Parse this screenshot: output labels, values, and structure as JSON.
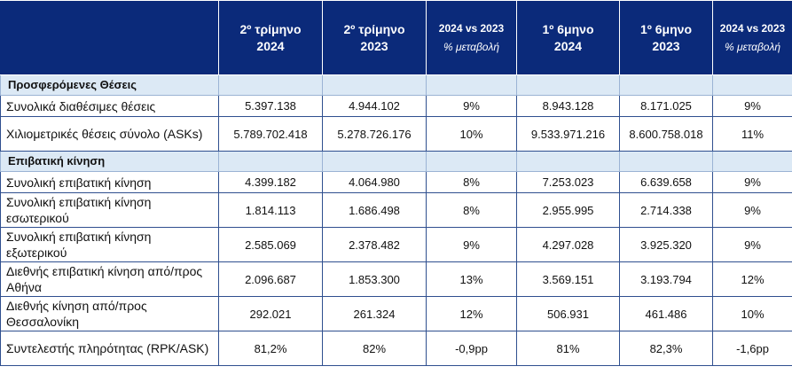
{
  "header": {
    "q2_2024": [
      "2º τρίμηνο",
      "2024"
    ],
    "q2_2023": [
      "2º τρίμηνο",
      "2023"
    ],
    "q_change": [
      "2024 vs 2023",
      "% μεταβολή"
    ],
    "h1_2024": [
      "1º  6μηνο",
      "2024"
    ],
    "h1_2023": [
      "1º  6μηνο",
      "2023"
    ],
    "h_change": [
      "2024 vs 2023",
      "% μεταβολή"
    ]
  },
  "sections": [
    {
      "title": "Προσφερόμενες Θέσεις",
      "rows": [
        {
          "label": "Συνολικά διαθέσιμες θέσεις",
          "values": [
            "5.397.138",
            "4.944.102",
            "9%",
            "8.943.128",
            "8.171.025",
            "9%"
          ]
        },
        {
          "label": "Χιλιομετρικές θέσεις σύνολο (ASKs)",
          "values": [
            "5.789.702.418",
            "5.278.726.176",
            "10%",
            "9.533.971.216",
            "8.600.758.018",
            "11%"
          ]
        }
      ]
    },
    {
      "title": "Επιβατική κίνηση",
      "rows": [
        {
          "label": "Συνολική επιβατική κίνηση",
          "values": [
            "4.399.182",
            "4.064.980",
            "8%",
            "7.253.023",
            "6.639.658",
            "9%"
          ]
        },
        {
          "label": "Συνολική επιβατική κίνηση εσωτερικού",
          "values": [
            "1.814.113",
            "1.686.498",
            "8%",
            "2.955.995",
            "2.714.338",
            "9%"
          ]
        },
        {
          "label": "Συνολική επιβατική κίνηση εξωτερικού",
          "values": [
            "2.585.069",
            "2.378.482",
            "9%",
            "4.297.028",
            "3.925.320",
            "9%"
          ]
        },
        {
          "label": "Διεθνής επιβατική κίνηση από/προς Αθήνα",
          "values": [
            "2.096.687",
            "1.853.300",
            "13%",
            "3.569.151",
            "3.193.794",
            "12%"
          ]
        },
        {
          "label": "Διεθνής κίνηση  από/προς Θεσσαλονίκη",
          "values": [
            "292.021",
            "261.324",
            "12%",
            "506.931",
            "461.486",
            "10%"
          ]
        },
        {
          "label": "Συντελεστής πληρότητας (RPK/ASK)",
          "values": [
            "81,2%",
            "82%",
            "-0,9pp",
            "81%",
            "82,3%",
            "-1,6pp"
          ]
        }
      ]
    }
  ]
}
